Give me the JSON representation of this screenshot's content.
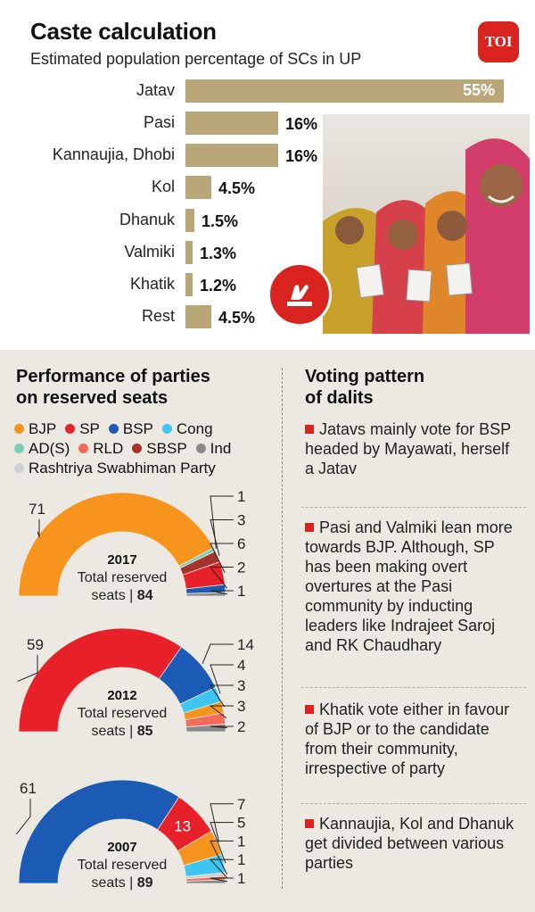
{
  "header": {
    "title": "Caste calculation",
    "subtitle": "Estimated population percentage of SCs in UP",
    "brand": "TOI"
  },
  "colors": {
    "bar": "#b9a77a",
    "accent": "#d8231e",
    "BJP": "#f7941d",
    "SP": "#e8202a",
    "BSP": "#1c5bb5",
    "Cong": "#3ec6f0",
    "AD(S)": "#7ecdb8",
    "RLD": "#f26b5b",
    "SBSP": "#a6322b",
    "Ind": "#8a8a8a",
    "Rashtriya Swabhiman Party": "#d0d0d0"
  },
  "chart_data": [
    {
      "type": "bar",
      "orientation": "horizontal",
      "title": "Caste calculation",
      "subtitle": "Estimated population percentage of SCs in UP",
      "categories": [
        "Jatav",
        "Pasi",
        "Kannaujia, Dhobi",
        "Kol",
        "Dhanuk",
        "Valmiki",
        "Khatik",
        "Rest"
      ],
      "values": [
        55,
        16,
        16,
        4.5,
        1.5,
        1.3,
        1.2,
        4.5
      ],
      "labels": [
        "55%",
        "16%",
        "16%",
        "4.5%",
        "1.5%",
        "1.3%",
        "1.2%",
        "4.5%"
      ],
      "xlim": [
        0,
        55
      ]
    },
    {
      "type": "pie",
      "variant": "half-donut",
      "year": "2017",
      "caption_line1": "Total reserved",
      "caption_line2": "seats | ",
      "total": "84",
      "series": [
        {
          "name": "BJP",
          "value": 71
        },
        {
          "name": "AD(S)",
          "value": 1
        },
        {
          "name": "SBSP",
          "value": 3
        },
        {
          "name": "SP",
          "value": 6
        },
        {
          "name": "BSP",
          "value": 2
        },
        {
          "name": "Ind",
          "value": 1
        }
      ]
    },
    {
      "type": "pie",
      "variant": "half-donut",
      "year": "2012",
      "caption_line1": "Total reserved",
      "caption_line2": "seats | ",
      "total": "85",
      "series": [
        {
          "name": "SP",
          "value": 59
        },
        {
          "name": "BSP",
          "value": 14
        },
        {
          "name": "Cong",
          "value": 4
        },
        {
          "name": "BJP",
          "value": 3
        },
        {
          "name": "RLD",
          "value": 3
        },
        {
          "name": "Ind",
          "value": 2
        }
      ]
    },
    {
      "type": "pie",
      "variant": "half-donut",
      "year": "2007",
      "caption_line1": "Total reserved",
      "caption_line2": "seats | ",
      "total": "89",
      "series": [
        {
          "name": "BSP",
          "value": 61
        },
        {
          "name": "SP",
          "value": 13
        },
        {
          "name": "BJP",
          "value": 7
        },
        {
          "name": "Cong",
          "value": 5
        },
        {
          "name": "Rashtriya Swabhiman Party",
          "value": 1
        },
        {
          "name": "RLD",
          "value": 1
        },
        {
          "name": "Ind",
          "value": 1
        }
      ]
    }
  ],
  "performance": {
    "title_line1": "Performance of parties",
    "title_line2": "on reserved seats",
    "legend": [
      "BJP",
      "SP",
      "BSP",
      "Cong",
      "AD(S)",
      "RLD",
      "SBSP",
      "Ind",
      "Rashtriya Swabhiman Party"
    ]
  },
  "voting": {
    "title_line1": "Voting pattern",
    "title_line2": "of dalits",
    "notes": [
      "Jatavs mainly vote for BSP headed by Mayawati, herself a Jatav",
      "Pasi and Valmiki lean more towards BJP. Although, SP has been making overt overtures at the Pasi community by inducting leaders like Indrajeet Saroj and RK Chaudhary",
      "Khatik vote either in favour of BJP or to the candidate from their community, irrespective of party",
      "Kannaujia, Kol and Dhanuk get divided between various parties"
    ]
  }
}
